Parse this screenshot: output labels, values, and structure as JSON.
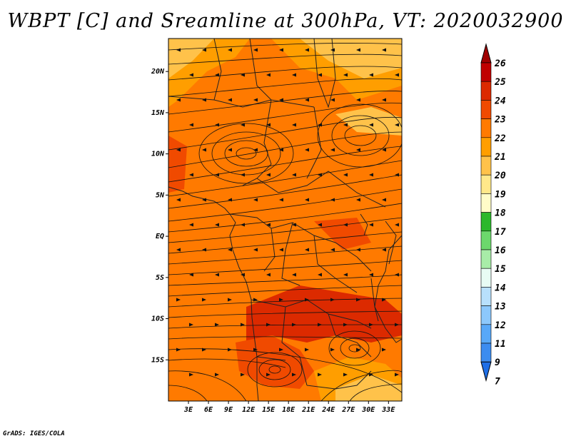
{
  "title": "WBPT [C] and Sreamline at 300hPa, VT: 2020032900",
  "credit": "GrADS: IGES/COLA",
  "map": {
    "lon_min": 0,
    "lon_max": 35,
    "lat_min": -20,
    "lat_max": 24,
    "lat_ticks": [
      {
        "value": 20,
        "label": "20N"
      },
      {
        "value": 15,
        "label": "15N"
      },
      {
        "value": 10,
        "label": "10N"
      },
      {
        "value": 5,
        "label": "5N"
      },
      {
        "value": 0,
        "label": "EQ"
      },
      {
        "value": -5,
        "label": "5S"
      },
      {
        "value": -10,
        "label": "10S"
      },
      {
        "value": -15,
        "label": "15S"
      }
    ],
    "lon_ticks": [
      {
        "value": 3,
        "label": "3E"
      },
      {
        "value": 6,
        "label": "6E"
      },
      {
        "value": 9,
        "label": "9E"
      },
      {
        "value": 12,
        "label": "12E"
      },
      {
        "value": 15,
        "label": "15E"
      },
      {
        "value": 18,
        "label": "18E"
      },
      {
        "value": 21,
        "label": "21E"
      },
      {
        "value": 24,
        "label": "24E"
      },
      {
        "value": 27,
        "label": "27E"
      },
      {
        "value": 30,
        "label": "30E"
      },
      {
        "value": 33,
        "label": "33E"
      }
    ]
  },
  "colorbar": {
    "labels": [
      "26",
      "25",
      "24",
      "23",
      "22",
      "21",
      "20",
      "19",
      "18",
      "17",
      "16",
      "15",
      "14",
      "13",
      "12",
      "11",
      "9",
      "7"
    ],
    "colors": [
      "#a00000",
      "#c00000",
      "#dc2a00",
      "#f04a00",
      "#ff7a00",
      "#ff9e00",
      "#ffc24a",
      "#ffe88a",
      "#fffcc8",
      "#2cb82c",
      "#6cd86c",
      "#a8eca8",
      "#e8fcf4",
      "#b8e0fc",
      "#8cc8fc",
      "#58a8f8",
      "#3c8cf0",
      "#1e6ee6"
    ],
    "top_color": "#a00000",
    "bottom_color": "#1e6ee6"
  },
  "colors": {
    "field_base": "#ff7a00",
    "field_warm": "#f04a00",
    "field_hot": "#dc2a00",
    "field_cool": "#ff9e00",
    "field_pale": "#ffc24a"
  }
}
